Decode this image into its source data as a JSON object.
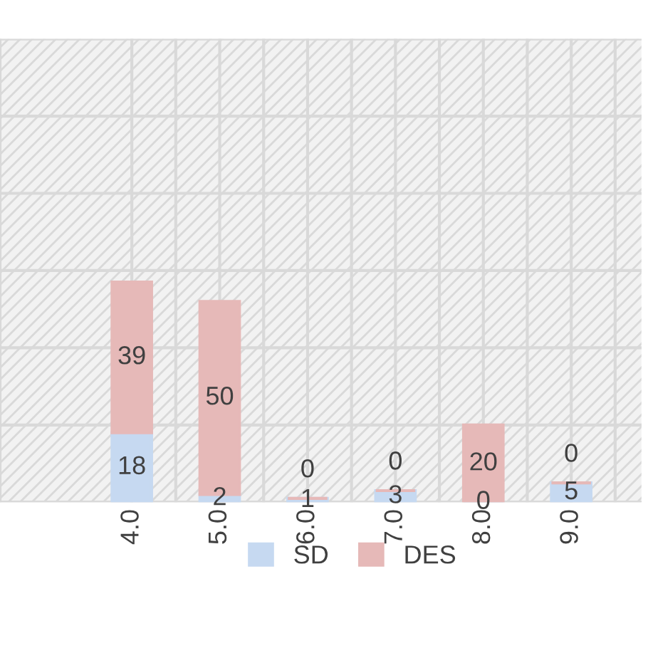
{
  "chart_data": {
    "type": "bar",
    "stacked": true,
    "categories": [
      "4.0",
      "5.0",
      "6.0",
      "7.0",
      "8.0",
      "9.0"
    ],
    "series": [
      {
        "name": "SD",
        "color": "#c6d9f1",
        "values": [
          18,
          2,
          1,
          3,
          0,
          5
        ]
      },
      {
        "name": "DES",
        "color": "#e6b9b8",
        "values": [
          39,
          50,
          0,
          0,
          20,
          0
        ]
      }
    ],
    "ylim": [
      0,
      120
    ],
    "yticks": [
      {
        "value": 0,
        "label": null
      },
      {
        "value": 20,
        "label": null
      },
      {
        "value": 40,
        "label": null
      },
      {
        "value": 60,
        "label": null
      },
      {
        "value": 80,
        "label": null
      },
      {
        "value": 100,
        "label": null
      },
      {
        "value": 120,
        "label": null
      }
    ],
    "tick_labels": "x",
    "grid": true,
    "legend": "bottom",
    "data_labels": true
  }
}
